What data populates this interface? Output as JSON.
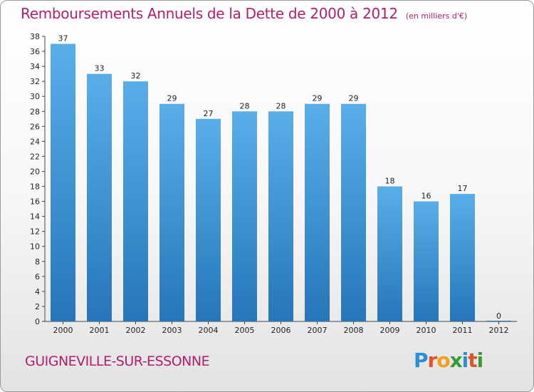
{
  "title": "Remboursements Annuels de la Dette de 2000 à 2012",
  "unit_note": "(en milliers d'€)",
  "commune": "GUIGNEVILLE-SUR-ESSONNE",
  "logo": {
    "letters": [
      "P",
      "r",
      "o",
      "x",
      "i",
      "t",
      "i"
    ],
    "colors": [
      "#2a8fd8",
      "#e0522a",
      "#f2a11a",
      "#3a9a3a",
      "#2a8fd8",
      "#e0522a",
      "#3a9a3a"
    ]
  },
  "colors": {
    "bar_top": "#5aaee8",
    "bar_bottom": "#2676b8",
    "axis_text": "#222222",
    "title": "#b0206e"
  },
  "chart_data": {
    "type": "bar",
    "title": "Remboursements Annuels de la Dette de 2000 à 2012",
    "categories": [
      "2000",
      "2001",
      "2002",
      "2003",
      "2004",
      "2005",
      "2006",
      "2007",
      "2008",
      "2009",
      "2010",
      "2011",
      "2012"
    ],
    "values": [
      37,
      33,
      32,
      29,
      27,
      28,
      28,
      29,
      29,
      18,
      16,
      17,
      0
    ],
    "ylim": [
      0,
      38
    ],
    "yticks": [
      0,
      2,
      4,
      6,
      8,
      10,
      12,
      14,
      16,
      18,
      20,
      22,
      24,
      26,
      28,
      30,
      32,
      34,
      36,
      38
    ],
    "grid": false,
    "data_labels": true
  }
}
